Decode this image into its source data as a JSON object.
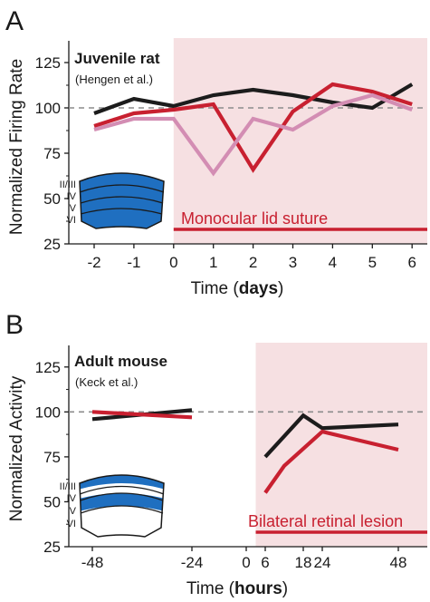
{
  "colors": {
    "black_series": "#1c1c1c",
    "red_series": "#c82030",
    "pink_series": "#d38db3",
    "shade": "#f6e0e2",
    "cortex_fill": "#1f6fc0",
    "reference_line": "#8c8c8c"
  },
  "chart_data": [
    {
      "type": "line",
      "panel_label": "A",
      "title": "Juvenile rat",
      "subtitle": "(Hengen et al.)",
      "ylabel": "Normalized Firing Rate",
      "xlabel_prefix": "Time (",
      "xlabel_unit": "days",
      "xlabel_suffix": ")",
      "xlim": [
        -2.5,
        6.3
      ],
      "ylim": [
        25,
        137
      ],
      "xticks": [
        -2,
        -1,
        0,
        1,
        2,
        3,
        4,
        5,
        6
      ],
      "xtick_labels": [
        "-2",
        "-1",
        "0",
        "1",
        "2",
        "3",
        "4",
        "5",
        "6"
      ],
      "yticks": [
        25,
        50,
        75,
        100,
        125
      ],
      "ytick_labels": [
        "25",
        "50",
        "75",
        "100",
        "125"
      ],
      "reference_line": 100,
      "shaded_region": [
        0,
        6.3
      ],
      "annotation": "Monocular lid suture",
      "annotation_bar": [
        0,
        6.3
      ],
      "series": [
        {
          "color": "black",
          "x": [
            -2,
            -1,
            0,
            1,
            2,
            3,
            4,
            5,
            6
          ],
          "y": [
            97,
            105,
            101,
            107,
            110,
            107,
            103,
            100,
            113
          ]
        },
        {
          "color": "red",
          "x": [
            -2,
            -1,
            0,
            1,
            2,
            3,
            4,
            5,
            6
          ],
          "y": [
            90,
            97,
            99,
            102,
            66,
            98,
            113,
            109,
            102
          ]
        },
        {
          "color": "pink",
          "x": [
            -2,
            -1,
            0,
            1,
            2,
            3,
            4,
            5,
            6
          ],
          "y": [
            88,
            94,
            94,
            64,
            94,
            88,
            101,
            107,
            99
          ]
        }
      ],
      "schematic": {
        "layer_labels": [
          "II/III",
          "IV",
          "V",
          "VI"
        ],
        "shaded_layers": "all"
      }
    },
    {
      "type": "line",
      "panel_label": "B",
      "title": "Adult mouse",
      "subtitle": "(Keck et al.)",
      "ylabel": "Normalized Activity",
      "xlabel_prefix": "Time (",
      "xlabel_unit": "hours",
      "xlabel_suffix": ")",
      "xlim": [
        -58,
        56
      ],
      "ylim": [
        25,
        137
      ],
      "xticks": [
        -48,
        -24,
        0,
        6,
        18,
        24,
        48
      ],
      "xtick_labels": [
        "-48",
        "-24",
        "0",
        "6",
        "18",
        "24",
        "48"
      ],
      "yticks": [
        25,
        50,
        75,
        100,
        125
      ],
      "ytick_labels": [
        "25",
        "50",
        "75",
        "100",
        "125"
      ],
      "reference_line": 100,
      "shaded_region": [
        3,
        56
      ],
      "annotation": "Bilateral retinal lesion",
      "annotation_bar": [
        3,
        56
      ],
      "series": [
        {
          "color": "black",
          "x": [
            -48,
            -24
          ],
          "y": [
            96,
            101
          ]
        },
        {
          "color": "red",
          "x": [
            -48,
            -24
          ],
          "y": [
            100,
            97
          ]
        },
        {
          "color": "black",
          "x": [
            6,
            18,
            24,
            48
          ],
          "y": [
            75,
            98,
            91,
            93
          ]
        },
        {
          "color": "red",
          "x": [
            6,
            12,
            24,
            48
          ],
          "y": [
            55,
            70,
            89,
            79
          ]
        }
      ],
      "schematic": {
        "layer_labels": [
          "II/III",
          "IV",
          "V",
          "VI"
        ],
        "shaded_layers": "II/III, IV"
      }
    }
  ]
}
